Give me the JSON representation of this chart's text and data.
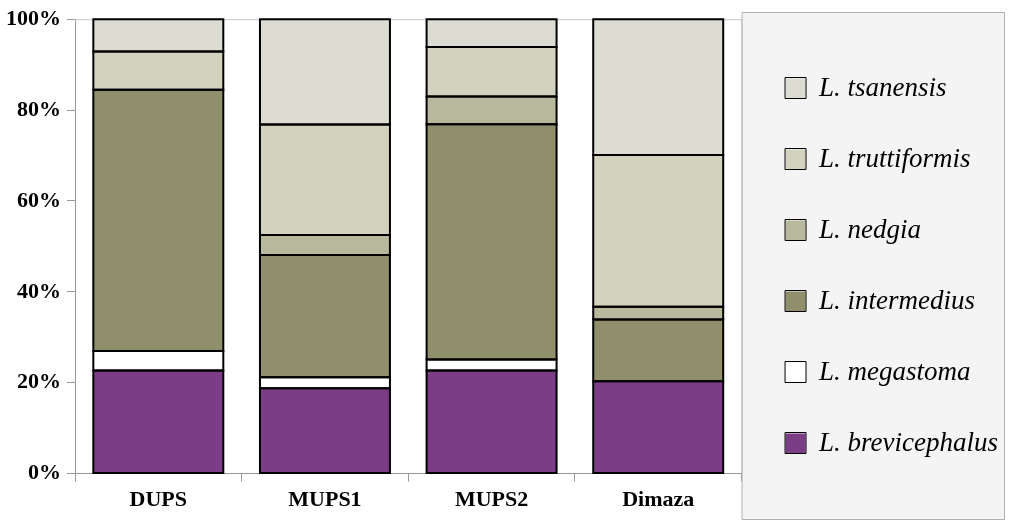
{
  "chart_data": {
    "type": "bar",
    "stacked": true,
    "categories": [
      "DUPS",
      "MUPS1",
      "MUPS2",
      "Dimaza"
    ],
    "series": [
      {
        "name": "L. brevicephalus",
        "color": "#7b3d86",
        "values": [
          22.7,
          18.8,
          22.7,
          20.3
        ]
      },
      {
        "name": "L. megastoma",
        "color": "#ffffff",
        "values": [
          4.3,
          2.4,
          2.4,
          0
        ]
      },
      {
        "name": "L. intermedius",
        "color": "#8f8f6c",
        "values": [
          57.5,
          26.9,
          51.8,
          13.6
        ]
      },
      {
        "name": "L. nedgia",
        "color": "#b8b89c",
        "values": [
          0,
          4.4,
          6.1,
          2.8
        ]
      },
      {
        "name": "L. truttiformis",
        "color": "#d2d2be",
        "values": [
          8.4,
          24.3,
          10.9,
          33.4
        ]
      },
      {
        "name": "L. tsanensis",
        "color": "#dcdcd2",
        "values": [
          7.1,
          23.2,
          6.1,
          29.9
        ]
      }
    ],
    "ylim": [
      0,
      100
    ],
    "yticks": [
      {
        "value": 0,
        "label": "0%"
      },
      {
        "value": 20,
        "label": "20%"
      },
      {
        "value": 40,
        "label": "40%"
      },
      {
        "value": 60,
        "label": "60%"
      },
      {
        "value": 80,
        "label": "80%"
      },
      {
        "value": 100,
        "label": "100%"
      }
    ],
    "grid": false,
    "legend": "right"
  }
}
